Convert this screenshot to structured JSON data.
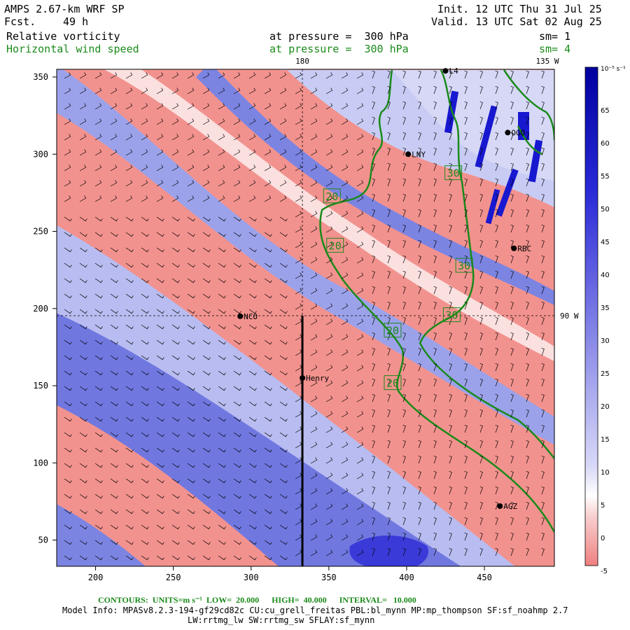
{
  "header": {
    "model": "AMPS 2.67-km WRF SP",
    "fcst_label": "Fcst.",
    "fcst_value": "49 h",
    "init": "Init. 12 UTC Thu 31 Jul 25",
    "valid": "Valid. 13 UTC Sat 02 Aug 25",
    "field1": "Relative vorticity",
    "field1_level": "at pressure =  300 hPa",
    "field1_sm": "sm= 1",
    "field2": "Horizontal wind speed",
    "field2_level": "at pressure =  300 hPa",
    "field2_sm": "sm= 4"
  },
  "geo_labels": {
    "lon_180": "180",
    "lon_135w": "135 W",
    "lat_90w": "90 W"
  },
  "stations": [
    {
      "name": "NCO",
      "x": 293,
      "y": 195
    },
    {
      "name": "Henry",
      "x": 333,
      "y": 155
    },
    {
      "name": "LNY",
      "x": 401,
      "y": 300
    },
    {
      "name": "RBC",
      "x": 469,
      "y": 239
    },
    {
      "name": "AGZ",
      "x": 460,
      "y": 72
    },
    {
      "name": "L4",
      "x": 425,
      "y": 354
    },
    {
      "name": "OGO",
      "x": 465,
      "y": 314
    }
  ],
  "colorbar": {
    "unit": "10⁻⁵ s⁻¹",
    "labels": [
      "65",
      "60",
      "55",
      "50",
      "45",
      "40",
      "35",
      "30",
      "25",
      "20",
      "15",
      "10",
      "5",
      "0",
      "-5"
    ],
    "colors": {
      "negative": "#f08080",
      "positive": "#3030d8",
      "zero": "#ffffff",
      "contour": "#1a8a1a"
    }
  },
  "footer": {
    "contours_label": "CONTOURS:  UNITS=m s⁻¹  LOW=  20.000      HIGH=  40.000      INTERVAL=   10.000",
    "model_info": "Model Info: MPASv8.2.3-194-gf29cd82c CU:cu_grell_freitas PBL:bl_mynn MP:mp_thompson SF:sf_noahmp 2.7",
    "model_info2": "LW:rrtmg_lw SW:rrtmg_sw SFLAY:sf_mynn"
  },
  "chart_data": {
    "type": "heatmap",
    "xlim": [
      175,
      495
    ],
    "ylim": [
      33,
      355
    ],
    "xticks": [
      200,
      250,
      300,
      350,
      400,
      450
    ],
    "yticks": [
      50,
      100,
      150,
      200,
      250,
      300,
      350
    ],
    "contour_labels": [
      {
        "value": "20",
        "x": 352,
        "y": 273
      },
      {
        "value": "20",
        "x": 354,
        "y": 241
      },
      {
        "value": "20",
        "x": 391,
        "y": 186
      },
      {
        "value": "20",
        "x": 391,
        "y": 152
      },
      {
        "value": "30",
        "x": 430,
        "y": 288
      },
      {
        "value": "30",
        "x": 437,
        "y": 228
      },
      {
        "value": "30",
        "x": 429,
        "y": 196
      }
    ],
    "cross_lines": {
      "vertical_x": 333,
      "horizontal_y": 195
    }
  }
}
